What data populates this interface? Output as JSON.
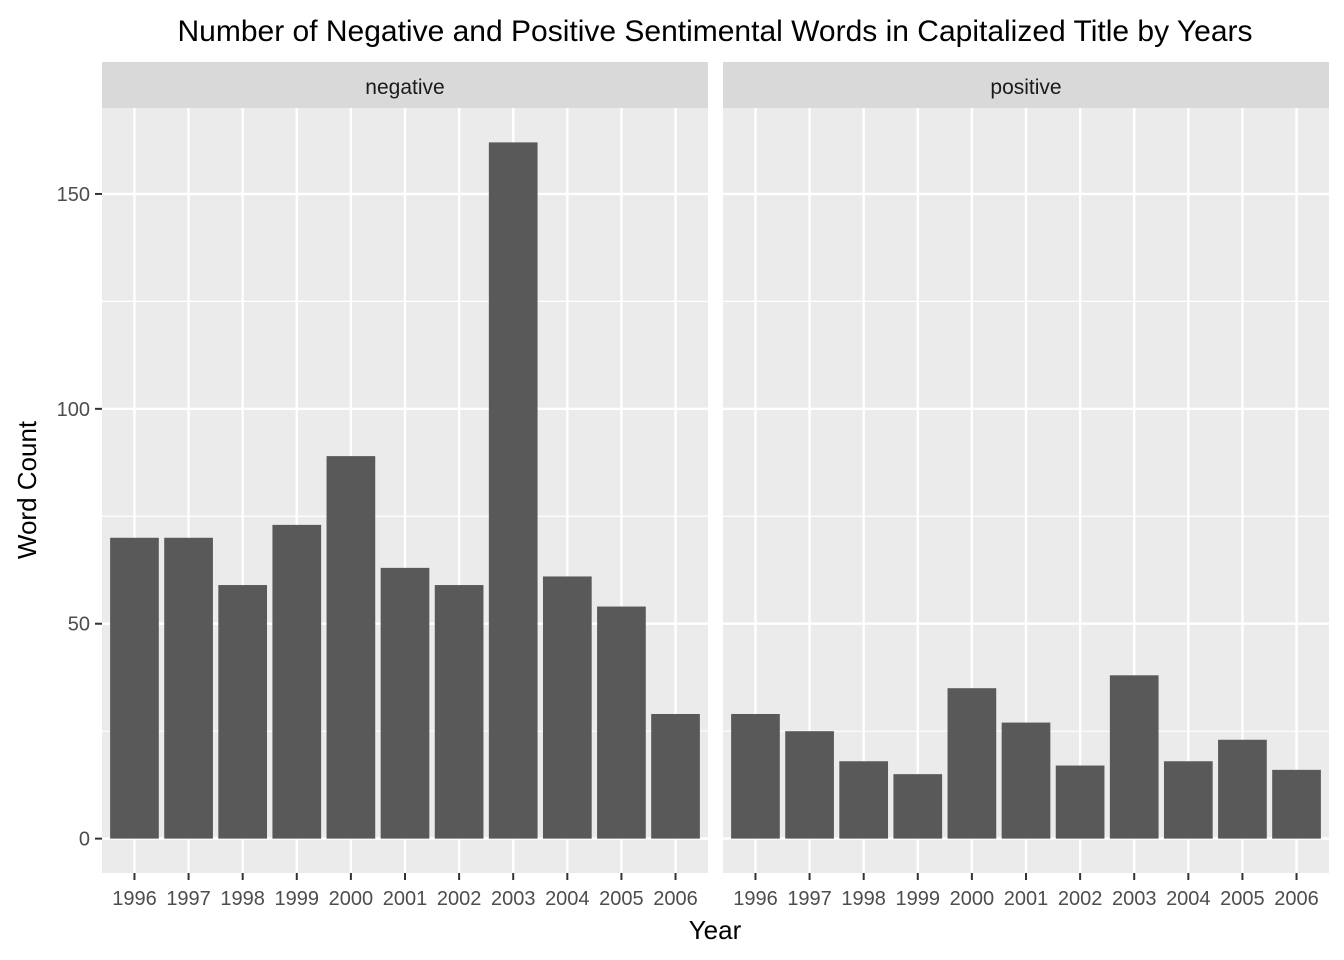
{
  "chart_data": {
    "type": "bar",
    "title": "Number of Negative and Positive Sentimental Words in Capitalized Title by Years",
    "xlabel": "Year",
    "ylabel": "Word Count",
    "categories": [
      "1996",
      "1997",
      "1998",
      "1999",
      "2000",
      "2001",
      "2002",
      "2003",
      "2004",
      "2005",
      "2006"
    ],
    "ylim": [
      -8,
      170
    ],
    "yticks": [
      0,
      50,
      100,
      150
    ],
    "grid": true,
    "bar_color": "#595959",
    "panel_color": "#ebebeb",
    "strip_color": "#d9d9d9",
    "panels": [
      {
        "name": "negative",
        "values": [
          70,
          70,
          59,
          73,
          89,
          63,
          59,
          162,
          61,
          54,
          29
        ]
      },
      {
        "name": "positive",
        "values": [
          29,
          25,
          18,
          15,
          35,
          27,
          17,
          38,
          18,
          23,
          16
        ]
      }
    ]
  }
}
